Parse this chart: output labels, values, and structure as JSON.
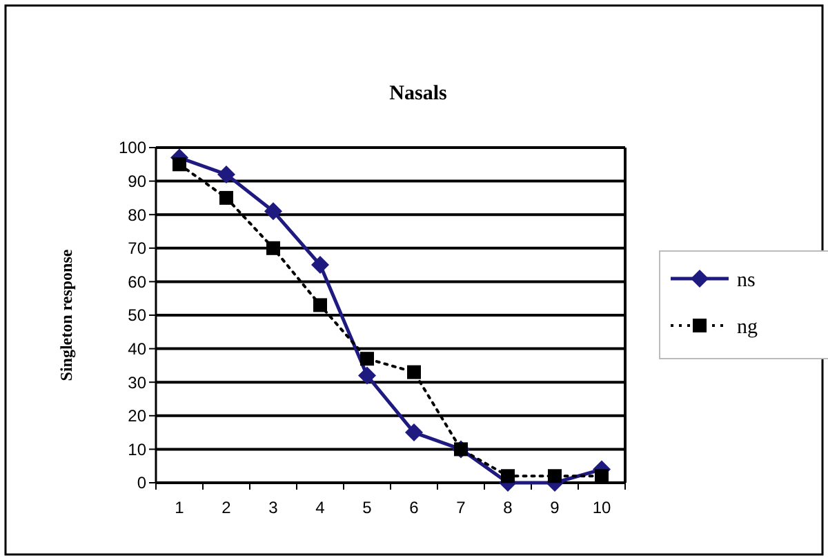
{
  "chart_data": {
    "type": "line",
    "title": "Nasals",
    "ylabel": "Singleton response",
    "categories": [
      "1",
      "2",
      "3",
      "4",
      "5",
      "6",
      "7",
      "8",
      "9",
      "10"
    ],
    "series": [
      {
        "name": "ns",
        "color": "#1f1a80",
        "values": [
          97,
          92,
          81,
          65,
          32,
          15,
          10,
          0,
          0,
          4
        ],
        "marker": "diamond",
        "line_style": "solid"
      },
      {
        "name": "ng",
        "color": "#000000",
        "values": [
          95,
          85,
          70,
          53,
          37,
          33,
          10,
          2,
          2,
          2
        ],
        "marker": "square",
        "line_style": "dotted"
      }
    ],
    "ylim": [
      0,
      100
    ],
    "yticks": [
      0,
      10,
      20,
      30,
      40,
      50,
      60,
      70,
      80,
      90,
      100
    ],
    "grid": "y",
    "legend": "right"
  }
}
